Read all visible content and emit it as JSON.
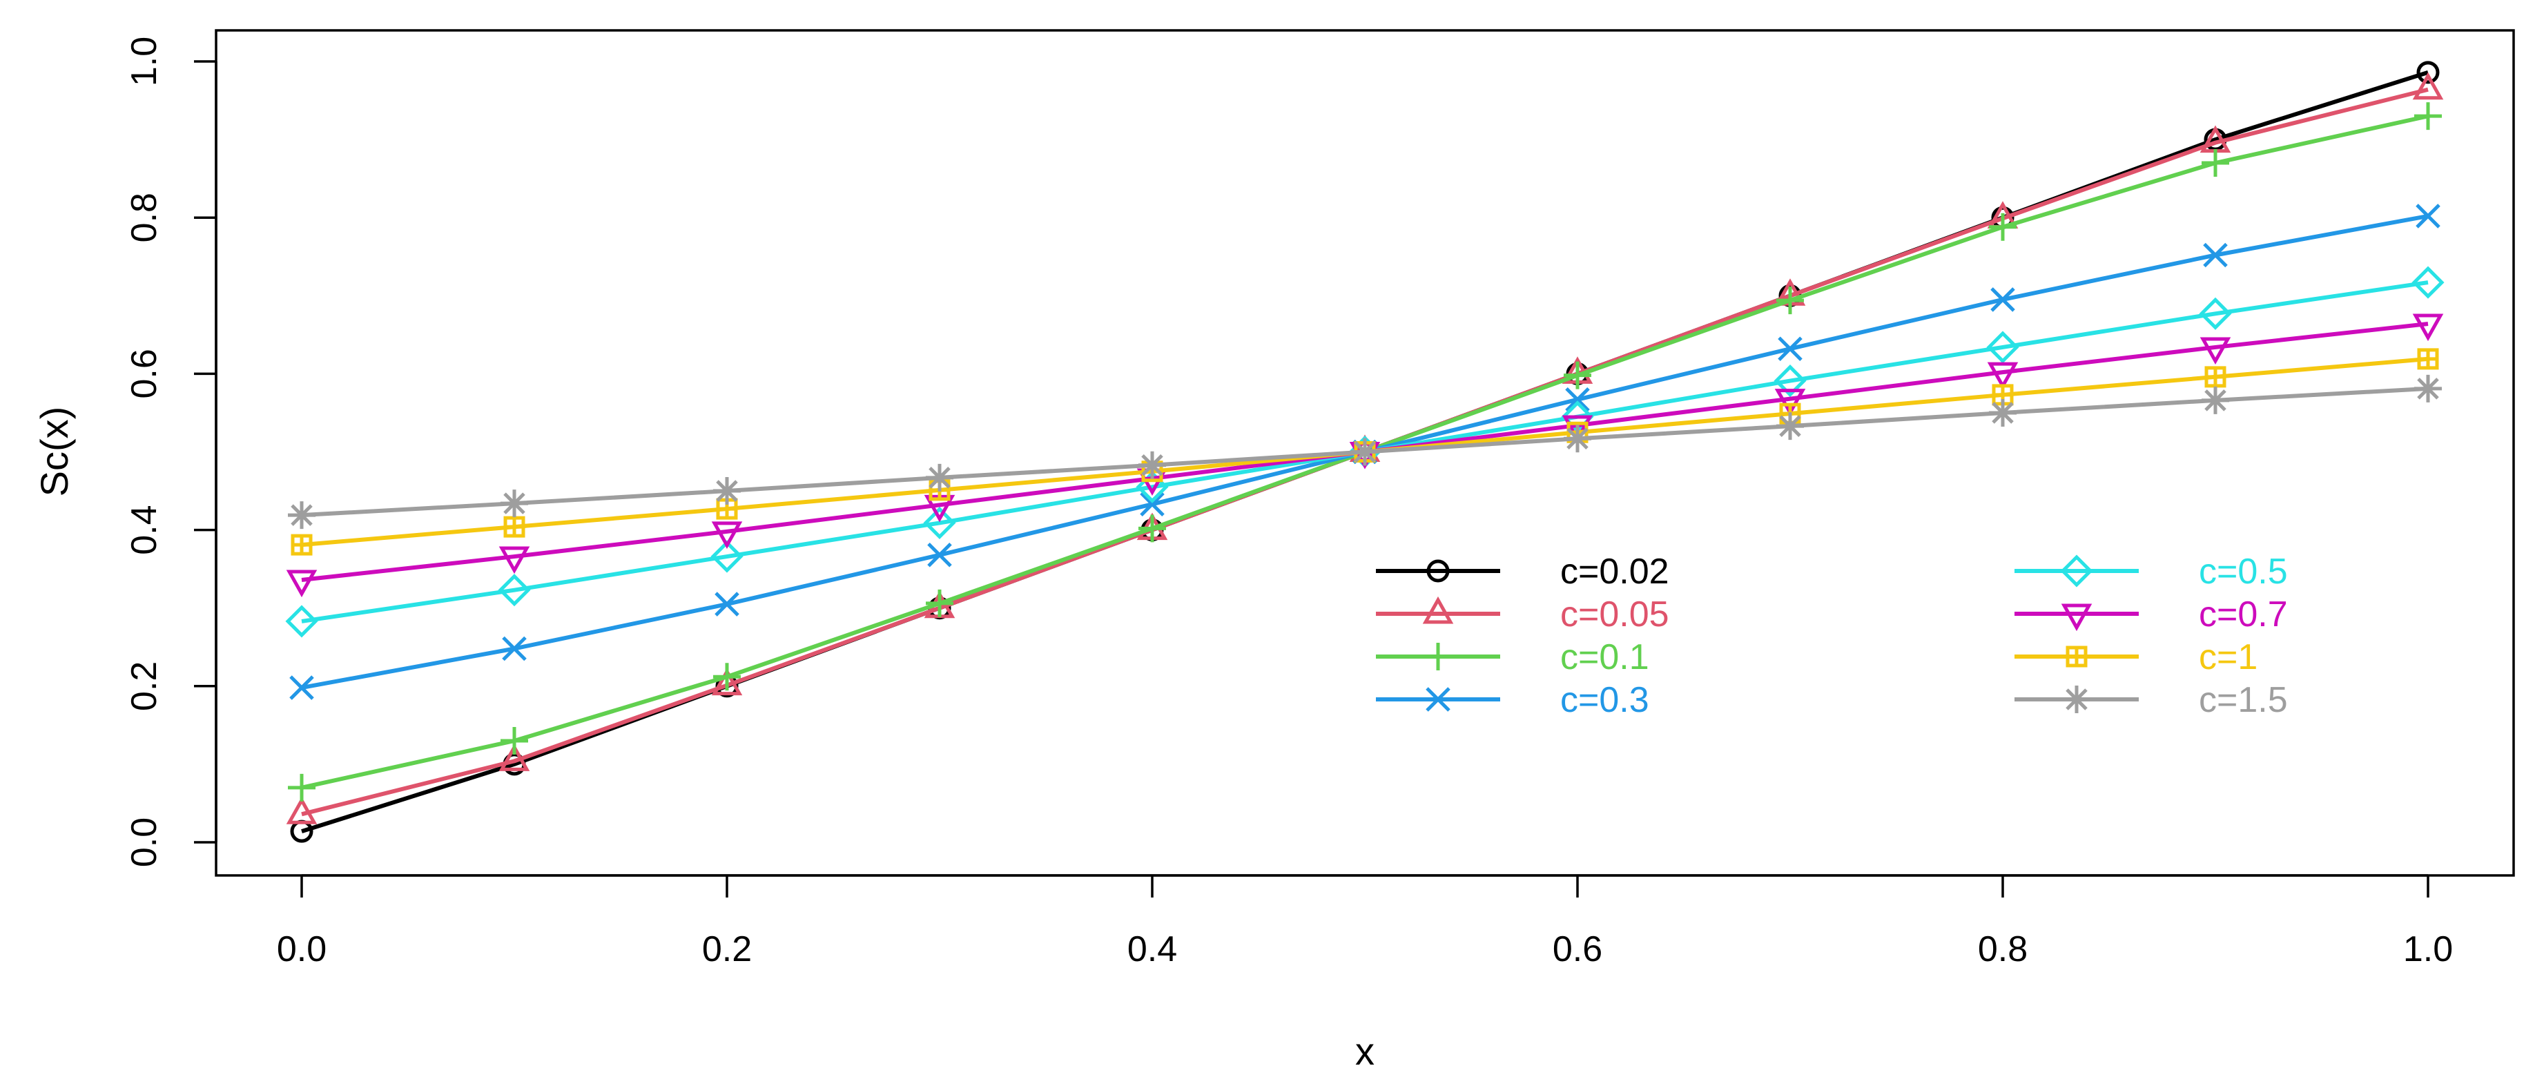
{
  "chart_data": {
    "type": "line",
    "title": "",
    "xlabel": "x",
    "ylabel": "Sc(x)",
    "xlim": [
      -0.04,
      1.04
    ],
    "ylim": [
      -0.04,
      1.04
    ],
    "x_ticks": [
      0.0,
      0.2,
      0.4,
      0.6,
      0.8,
      1.0
    ],
    "x_tick_labels": [
      "0.0",
      "0.2",
      "0.4",
      "0.6",
      "0.8",
      "1.0"
    ],
    "y_ticks": [
      0.0,
      0.2,
      0.4,
      0.6,
      0.8,
      1.0
    ],
    "y_tick_labels": [
      "0.0",
      "0.2",
      "0.4",
      "0.6",
      "0.8",
      "1.0"
    ],
    "grid": false,
    "legend_position": "center-right",
    "x": [
      0.0,
      0.1,
      0.2,
      0.3,
      0.4,
      0.5,
      0.6,
      0.7,
      0.8,
      0.9,
      1.0
    ],
    "series": [
      {
        "name": "c=0.02",
        "color": "#000000",
        "marker": "circle",
        "values": [
          0.014,
          0.1,
          0.2,
          0.3,
          0.4,
          0.5,
          0.6,
          0.7,
          0.8,
          0.9,
          0.986
        ]
      },
      {
        "name": "c=0.05",
        "color": "#DF536B",
        "marker": "triangle-up",
        "values": [
          0.036,
          0.104,
          0.201,
          0.3,
          0.4,
          0.5,
          0.6,
          0.7,
          0.799,
          0.896,
          0.964
        ]
      },
      {
        "name": "c=0.1",
        "color": "#61D04F",
        "marker": "plus",
        "values": [
          0.07,
          0.13,
          0.212,
          0.306,
          0.402,
          0.5,
          0.598,
          0.694,
          0.788,
          0.87,
          0.93
        ]
      },
      {
        "name": "c=0.3",
        "color": "#2297E6",
        "marker": "cross",
        "values": [
          0.198,
          0.248,
          0.305,
          0.368,
          0.433,
          0.5,
          0.567,
          0.632,
          0.695,
          0.752,
          0.802
        ]
      },
      {
        "name": "c=0.5",
        "color": "#28E2E5",
        "marker": "diamond",
        "values": [
          0.283,
          0.323,
          0.366,
          0.409,
          0.455,
          0.5,
          0.545,
          0.591,
          0.634,
          0.677,
          0.717
        ]
      },
      {
        "name": "c=0.7",
        "color": "#CD0BBC",
        "marker": "triangle-down",
        "values": [
          0.336,
          0.366,
          0.398,
          0.432,
          0.466,
          0.5,
          0.534,
          0.568,
          0.602,
          0.634,
          0.664
        ]
      },
      {
        "name": "c=1",
        "color": "#F5C710",
        "marker": "square-plus",
        "values": [
          0.381,
          0.404,
          0.427,
          0.451,
          0.475,
          0.5,
          0.525,
          0.549,
          0.573,
          0.596,
          0.619
        ]
      },
      {
        "name": "c=1.5",
        "color": "#9E9E9E",
        "marker": "asterisk",
        "values": [
          0.419,
          0.434,
          0.45,
          0.467,
          0.483,
          0.5,
          0.517,
          0.533,
          0.55,
          0.566,
          0.581
        ]
      }
    ]
  }
}
